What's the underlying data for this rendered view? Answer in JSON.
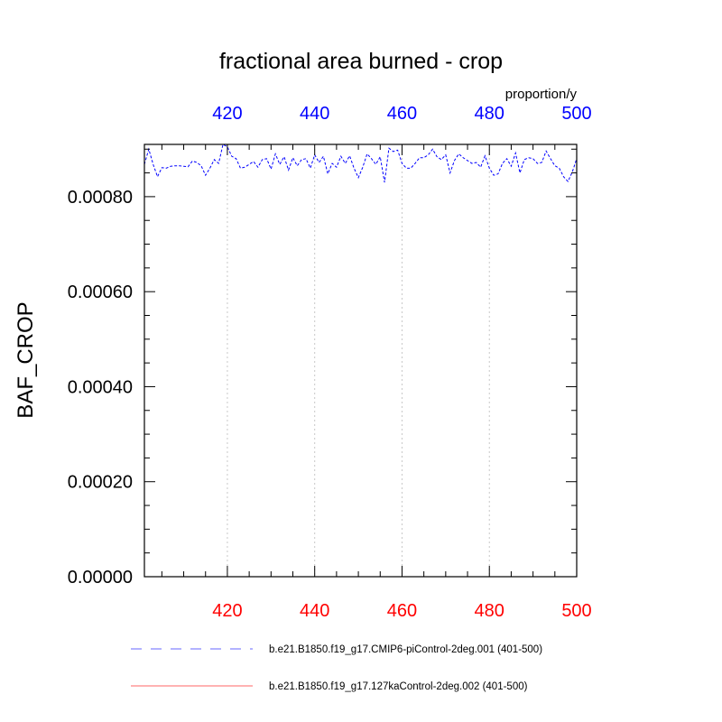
{
  "chart_data": {
    "type": "line",
    "title": "fractional area burned - crop",
    "ylabel": "BAF_CROP",
    "units": "proportion/y",
    "xlim": [
      401,
      500
    ],
    "ylim": [
      0,
      0.00091
    ],
    "x_ticks": [
      420,
      440,
      460,
      480,
      500
    ],
    "x_tick_labels": [
      "420",
      "440",
      "460",
      "480",
      "500"
    ],
    "y_ticks": [
      0,
      0.0002,
      0.0004,
      0.0006,
      0.0008
    ],
    "y_tick_labels": [
      "0.00000",
      "0.00020",
      "0.00040",
      "0.00060",
      "0.00080"
    ],
    "x_grid": true,
    "top_axis_color": "#0000ff",
    "bottom_axis_color": "#ff0000",
    "legend_position": "bottom",
    "series": [
      {
        "name": "b.e21.B1850.f19_g17.CMIP6-piControl-2deg.001 (401-500)",
        "color": "#0000ff",
        "dash": "dashed",
        "legend_dash": "long-dash",
        "x": [
          401,
          402,
          403,
          404,
          405,
          406,
          407,
          408,
          409,
          410,
          411,
          412,
          413,
          414,
          415,
          416,
          417,
          418,
          419,
          420,
          421,
          422,
          423,
          424,
          425,
          426,
          427,
          428,
          429,
          430,
          431,
          432,
          433,
          434,
          435,
          436,
          437,
          438,
          439,
          440,
          441,
          442,
          443,
          444,
          445,
          446,
          447,
          448,
          449,
          450,
          451,
          452,
          453,
          454,
          455,
          456,
          457,
          458,
          459,
          460,
          461,
          462,
          463,
          464,
          465,
          466,
          467,
          468,
          469,
          470,
          471,
          472,
          473,
          474,
          475,
          476,
          477,
          478,
          479,
          480,
          481,
          482,
          483,
          484,
          485,
          486,
          487,
          488,
          489,
          490,
          491,
          492,
          493,
          494,
          495,
          496,
          497,
          498,
          499,
          500
        ],
        "values": [
          0.000868,
          0.0009,
          0.000868,
          0.000842,
          0.000861,
          0.00086,
          0.000864,
          0.000865,
          0.000865,
          0.000864,
          0.000863,
          0.000875,
          0.000872,
          0.000865,
          0.000845,
          0.00086,
          0.000878,
          0.00087,
          0.00091,
          0.000905,
          0.000885,
          0.00088,
          0.00086,
          0.000862,
          0.000868,
          0.000874,
          0.000862,
          0.000878,
          0.00088,
          0.000858,
          0.00089,
          0.000868,
          0.000884,
          0.000856,
          0.000882,
          0.000865,
          0.000878,
          0.00088,
          0.00086,
          0.000888,
          0.000872,
          0.000885,
          0.000848,
          0.00087,
          0.000862,
          0.000885,
          0.00087,
          0.000886,
          0.00086,
          0.00084,
          0.000862,
          0.00089,
          0.00088,
          0.000868,
          0.000884,
          0.00083,
          0.000902,
          0.000895,
          0.000898,
          0.00087,
          0.00086,
          0.00086,
          0.00087,
          0.000882,
          0.000882,
          0.000888,
          0.0009,
          0.000884,
          0.000878,
          0.000888,
          0.00085,
          0.000876,
          0.00089,
          0.000882,
          0.000876,
          0.00087,
          0.000872,
          0.000862,
          0.000886,
          0.00086,
          0.000845,
          0.000848,
          0.00087,
          0.00088,
          0.000864,
          0.000892,
          0.00085,
          0.000878,
          0.000882,
          0.00088,
          0.00087,
          0.000872,
          0.000896,
          0.00088,
          0.000865,
          0.00086,
          0.000842,
          0.000832,
          0.000852,
          0.00088
        ]
      },
      {
        "name": "b.e21.B1850.f19_g17.127kaControl-2deg.002 (401-500)",
        "color": "#ff0000",
        "dash": "solid",
        "x": [],
        "values": []
      }
    ]
  }
}
